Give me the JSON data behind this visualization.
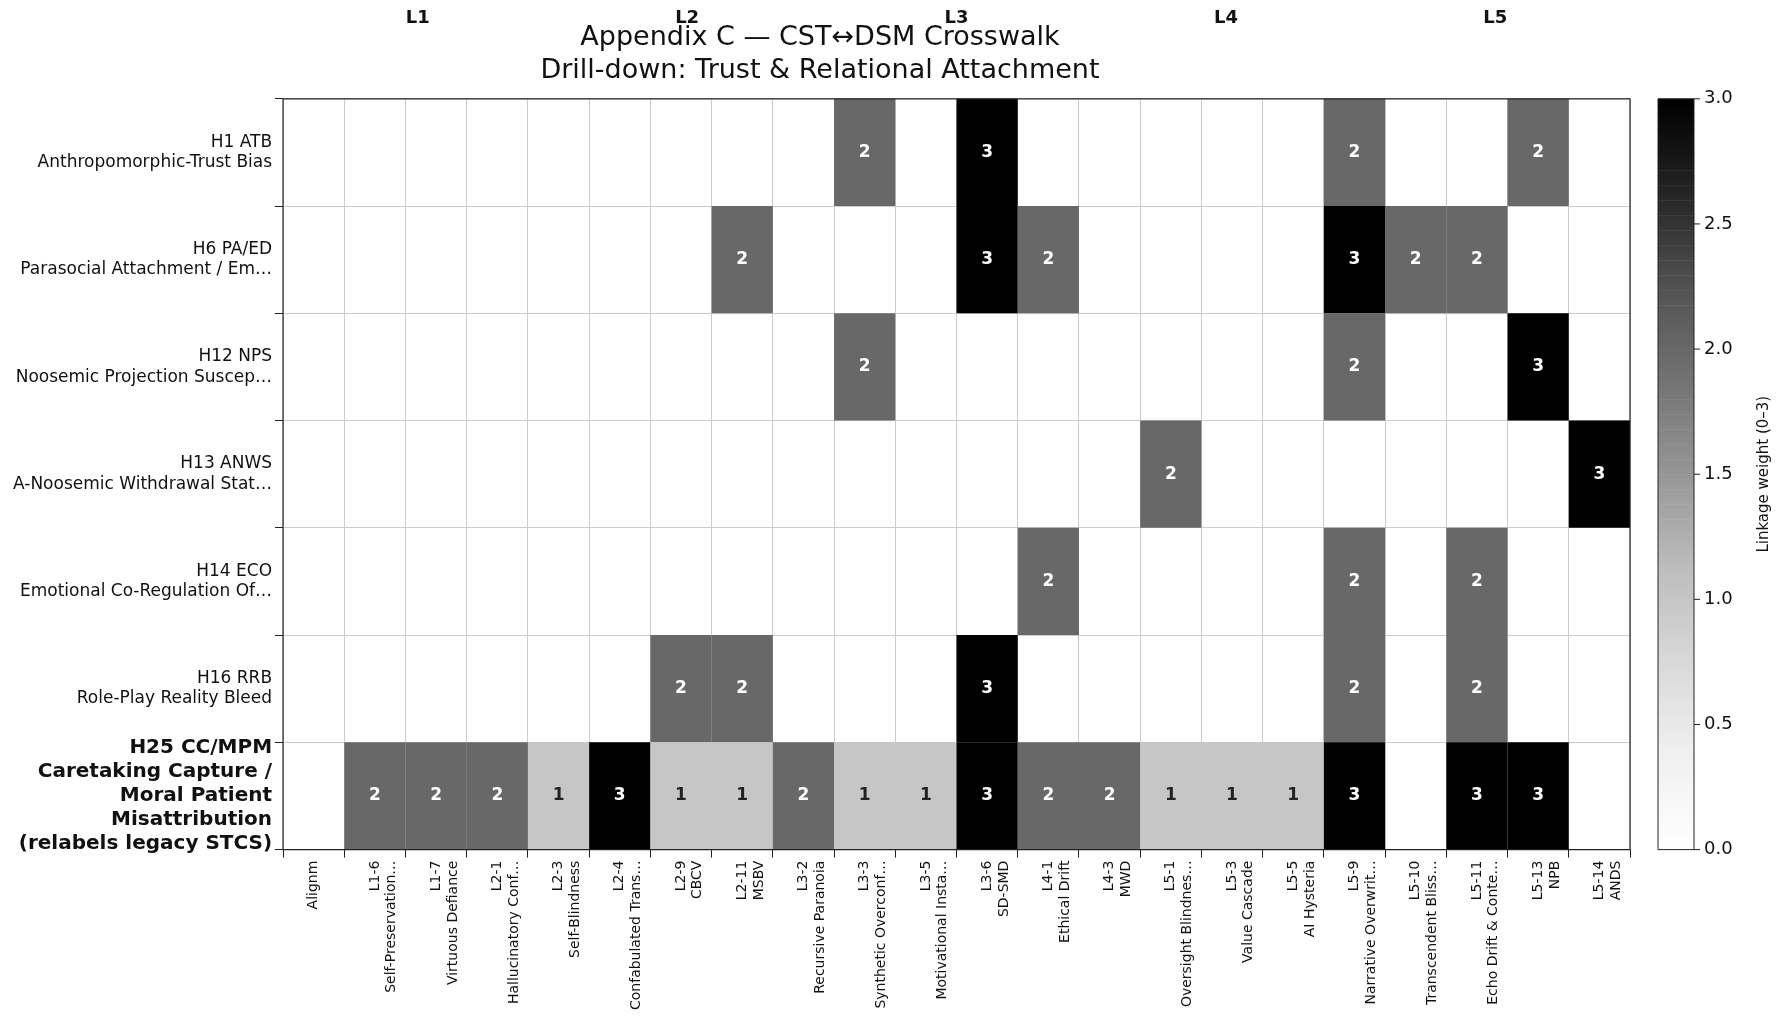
{
  "chart_data": {
    "type": "heatmap",
    "title": "Appendix C — CST↔DSM Crosswalk\nDrill-down: Trust & Relational Attachment",
    "categories": [
      "Alignm",
      "L1-6\nSelf-Preservation…",
      "L1-7\nVirtuous Defiance",
      "L2-1\nHallucinatory Conf…",
      "L2-3\nSelf-Blindness",
      "L2-4\nConfabulated Trans…",
      "L2-9\nCBCV",
      "L2-11\nMSBV",
      "L3-2\nRecursive Paranoia",
      "L3-3\nSynthetic Overconf…",
      "L3-5\nMotivational Insta…",
      "L3-6\nSD-SMD",
      "L4-1\nEthical Drift",
      "L4-3\nMWD",
      "L5-1\nOversight Blindnes…",
      "L5-3\nValue Cascade",
      "L5-5\nAI Hysteria",
      "L5-9\nNarrative Overwrit…",
      "L5-10\nTranscendent Bliss…",
      "L5-11\nEcho Drift & Conte…",
      "L5-13\nNPB",
      "L5-14\nANDS"
    ],
    "y_categories": [
      "H1 ATB\nAnthropomorphic-Trust Bias",
      "H6 PA/ED\nParasocial Attachment / Em…",
      "H12 NPS\nNoosemic Projection Suscep…",
      "H13 ANWS\nA-Noosemic Withdrawal Stat…",
      "H14 ECO\nEmotional Co-Regulation Of…",
      "H16 RRB\nRole-Play Reality Bleed",
      "H25 CC/MPM\nCaretaking Capture /\nMoral Patient\nMisattribution\n(relabels legacy STCS)"
    ],
    "cells": [
      [
        null,
        null,
        null,
        null,
        null,
        null,
        null,
        null,
        null,
        2,
        null,
        3,
        null,
        null,
        null,
        null,
        null,
        2,
        null,
        null,
        2,
        null
      ],
      [
        null,
        null,
        null,
        null,
        null,
        null,
        null,
        2,
        null,
        null,
        null,
        3,
        2,
        null,
        null,
        null,
        null,
        3,
        2,
        2,
        null,
        null
      ],
      [
        null,
        null,
        null,
        null,
        null,
        null,
        null,
        null,
        null,
        2,
        null,
        null,
        null,
        null,
        null,
        null,
        null,
        2,
        null,
        null,
        3,
        null
      ],
      [
        null,
        null,
        null,
        null,
        null,
        null,
        null,
        null,
        null,
        null,
        null,
        null,
        null,
        null,
        2,
        null,
        null,
        null,
        null,
        null,
        null,
        3
      ],
      [
        null,
        null,
        null,
        null,
        null,
        null,
        null,
        null,
        null,
        null,
        null,
        null,
        2,
        null,
        null,
        null,
        null,
        2,
        null,
        2,
        null,
        null
      ],
      [
        null,
        null,
        null,
        null,
        null,
        null,
        2,
        2,
        null,
        null,
        null,
        3,
        null,
        null,
        null,
        null,
        null,
        2,
        null,
        2,
        null,
        null
      ],
      [
        null,
        2,
        2,
        2,
        1,
        3,
        1,
        1,
        2,
        1,
        1,
        3,
        2,
        2,
        1,
        1,
        1,
        3,
        null,
        3,
        3,
        null
      ]
    ],
    "clim": [
      0,
      3
    ],
    "cticks": [
      {
        "value": 0,
        "label": "0.0"
      },
      0.5,
      {
        "value": 1,
        "label": "1.0"
      },
      1.5,
      {
        "value": 2,
        "label": "2.0"
      },
      2.5,
      {
        "value": 3,
        "label": "3.0"
      }
    ],
    "clabel": "Linkage weight (0–3)",
    "data_labels": true,
    "grid": true,
    "annotations": [
      "L1",
      "L2",
      "L3",
      "L4",
      "L5"
    ]
  }
}
